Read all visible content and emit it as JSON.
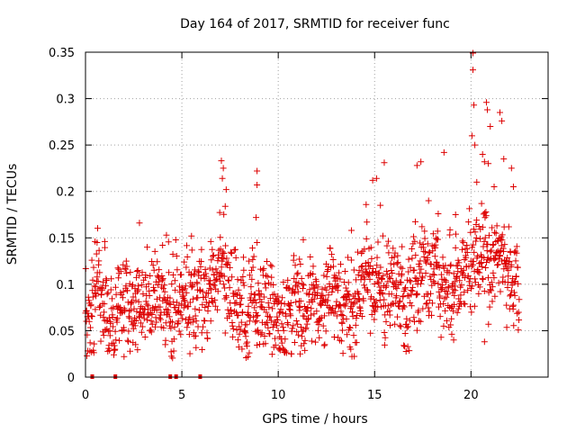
{
  "chart_data": {
    "type": "scatter",
    "title": "Day 164 of 2017, SRMTID for receiver func",
    "xlabel": "GPS time / hours",
    "ylabel": "SRMTID / TECUs",
    "xlim": [
      0,
      24
    ],
    "ylim": [
      0,
      0.35
    ],
    "x_ticks": [
      0,
      5,
      10,
      15,
      20
    ],
    "x_tick_labels": [
      "0",
      "5",
      "10",
      "15",
      "20"
    ],
    "y_ticks": [
      0,
      0.05,
      0.1,
      0.15,
      0.2,
      0.25,
      0.3,
      0.35
    ],
    "y_tick_labels": [
      "0",
      "0.05",
      "0.1",
      "0.15",
      "0.2",
      "0.25",
      "0.3",
      "0.35"
    ],
    "grid": true,
    "marker": "plus",
    "color": "#dd0000",
    "profile": [
      [
        0.0,
        0.082
      ],
      [
        0.5,
        0.085
      ],
      [
        1.0,
        0.066
      ],
      [
        1.5,
        0.062
      ],
      [
        2.0,
        0.068
      ],
      [
        2.5,
        0.076
      ],
      [
        3.0,
        0.09
      ],
      [
        3.5,
        0.092
      ],
      [
        4.0,
        0.086
      ],
      [
        4.5,
        0.078
      ],
      [
        5.0,
        0.076
      ],
      [
        5.5,
        0.08
      ],
      [
        6.0,
        0.078
      ],
      [
        6.5,
        0.088
      ],
      [
        7.0,
        0.1
      ],
      [
        7.5,
        0.085
      ],
      [
        8.0,
        0.075
      ],
      [
        8.5,
        0.07
      ],
      [
        9.0,
        0.078
      ],
      [
        9.5,
        0.07
      ],
      [
        10.0,
        0.066
      ],
      [
        10.5,
        0.072
      ],
      [
        11.0,
        0.07
      ],
      [
        11.5,
        0.072
      ],
      [
        12.0,
        0.076
      ],
      [
        12.5,
        0.08
      ],
      [
        13.0,
        0.084
      ],
      [
        13.5,
        0.08
      ],
      [
        14.0,
        0.076
      ],
      [
        14.5,
        0.09
      ],
      [
        15.0,
        0.105
      ],
      [
        15.5,
        0.1
      ],
      [
        16.0,
        0.095
      ],
      [
        16.5,
        0.09
      ],
      [
        17.0,
        0.094
      ],
      [
        17.5,
        0.102
      ],
      [
        18.0,
        0.108
      ],
      [
        18.5,
        0.11
      ],
      [
        19.0,
        0.096
      ],
      [
        19.5,
        0.108
      ],
      [
        20.0,
        0.125
      ],
      [
        20.5,
        0.135
      ],
      [
        21.0,
        0.135
      ],
      [
        21.5,
        0.125
      ],
      [
        22.0,
        0.115
      ],
      [
        22.5,
        0.105
      ]
    ],
    "scatter_level": 0.024,
    "spikes": [
      {
        "x": 2.8,
        "y": 0.166
      },
      {
        "x": 3.2,
        "y": 0.14
      },
      {
        "x": 4.0,
        "y": 0.142
      },
      {
        "x": 4.2,
        "y": 0.153
      },
      {
        "x": 5.5,
        "y": 0.152
      },
      {
        "x": 6.5,
        "y": 0.146
      },
      {
        "x": 7.05,
        "y": 0.233
      },
      {
        "x": 7.15,
        "y": 0.225
      },
      {
        "x": 7.3,
        "y": 0.202
      },
      {
        "x": 7.1,
        "y": 0.214
      },
      {
        "x": 7.25,
        "y": 0.184
      },
      {
        "x": 8.9,
        "y": 0.222
      },
      {
        "x": 8.9,
        "y": 0.207
      },
      {
        "x": 8.85,
        "y": 0.172
      },
      {
        "x": 8.9,
        "y": 0.145
      },
      {
        "x": 11.1,
        "y": 0.127
      },
      {
        "x": 11.3,
        "y": 0.148
      },
      {
        "x": 13.8,
        "y": 0.158
      },
      {
        "x": 14.9,
        "y": 0.212
      },
      {
        "x": 15.1,
        "y": 0.214
      },
      {
        "x": 15.5,
        "y": 0.231
      },
      {
        "x": 15.3,
        "y": 0.185
      },
      {
        "x": 14.6,
        "y": 0.167
      },
      {
        "x": 17.2,
        "y": 0.228
      },
      {
        "x": 17.4,
        "y": 0.232
      },
      {
        "x": 17.8,
        "y": 0.19
      },
      {
        "x": 18.6,
        "y": 0.242
      },
      {
        "x": 18.3,
        "y": 0.176
      },
      {
        "x": 19.2,
        "y": 0.175
      },
      {
        "x": 20.1,
        "y": 0.349
      },
      {
        "x": 20.1,
        "y": 0.331
      },
      {
        "x": 20.15,
        "y": 0.293
      },
      {
        "x": 20.05,
        "y": 0.26
      },
      {
        "x": 20.2,
        "y": 0.25
      },
      {
        "x": 20.3,
        "y": 0.21
      },
      {
        "x": 20.6,
        "y": 0.24
      },
      {
        "x": 20.7,
        "y": 0.232
      },
      {
        "x": 20.8,
        "y": 0.296
      },
      {
        "x": 20.85,
        "y": 0.288
      },
      {
        "x": 20.9,
        "y": 0.23
      },
      {
        "x": 21.0,
        "y": 0.27
      },
      {
        "x": 21.5,
        "y": 0.285
      },
      {
        "x": 21.6,
        "y": 0.276
      },
      {
        "x": 21.7,
        "y": 0.235
      },
      {
        "x": 22.1,
        "y": 0.225
      },
      {
        "x": 22.2,
        "y": 0.205
      },
      {
        "x": 21.2,
        "y": 0.205
      },
      {
        "x": 20.7,
        "y": 0.038
      },
      {
        "x": 2.0,
        "y": 0.022
      },
      {
        "x": 2.6,
        "y": 0.035
      },
      {
        "x": 19.1,
        "y": 0.04
      },
      {
        "x": 0.6,
        "y": 0.145
      },
      {
        "x": 1.0,
        "y": 0.146
      }
    ],
    "zero_points_x": [
      0.35,
      1.55,
      4.4,
      4.7,
      5.95
    ],
    "n_points": 1500
  }
}
